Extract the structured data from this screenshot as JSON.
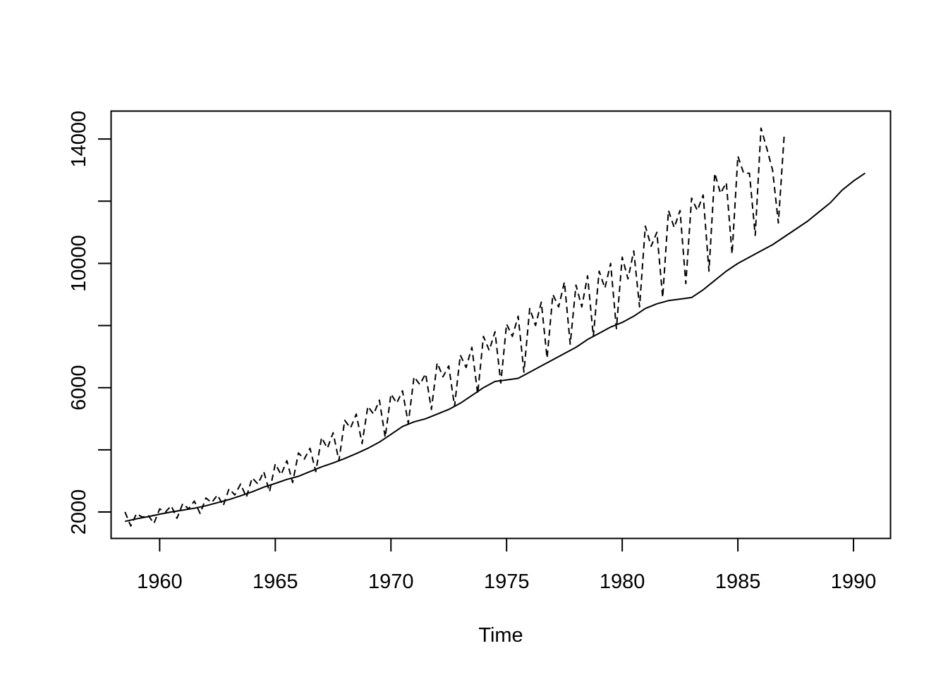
{
  "chart_data": {
    "type": "line",
    "title": "",
    "xlabel": "Time",
    "ylabel": "",
    "xlim": [
      1957.9,
      1991.6
    ],
    "ylim": [
      1150,
      14900
    ],
    "xticks": [
      1960,
      1965,
      1970,
      1975,
      1980,
      1985,
      1990
    ],
    "yticks": [
      2000,
      4000,
      6000,
      8000,
      10000,
      12000,
      14000
    ],
    "ytick_labels": [
      "2000",
      "",
      "6000",
      "",
      "10000",
      "",
      "14000"
    ],
    "grid": false,
    "legend": "none",
    "series": [
      {
        "line_style": "dashed",
        "x_start": 1958.5,
        "x_step": 0.25,
        "values": [
          2000,
          1550,
          1950,
          1830,
          1900,
          1630,
          2100,
          2000,
          2200,
          1800,
          2270,
          2100,
          2350,
          1950,
          2450,
          2300,
          2550,
          2200,
          2750,
          2550,
          2900,
          2480,
          3100,
          2900,
          3300,
          2650,
          3550,
          3200,
          3650,
          2950,
          3900,
          3700,
          4050,
          3300,
          4400,
          4050,
          4550,
          3650,
          4950,
          4700,
          5150,
          4200,
          5400,
          5150,
          5600,
          4400,
          5800,
          5500,
          5900,
          4850,
          6350,
          6100,
          6450,
          5300,
          6800,
          6350,
          6700,
          5400,
          7050,
          6650,
          7300,
          5800,
          7650,
          7200,
          7800,
          6150,
          8050,
          7650,
          8300,
          6500,
          8550,
          8000,
          8750,
          6950,
          9000,
          8600,
          9400,
          7400,
          9300,
          8600,
          9600,
          7650,
          9750,
          9200,
          10000,
          7900,
          10200,
          9500,
          10400,
          8600,
          11200,
          10550,
          11000,
          8900,
          11700,
          11150,
          11700,
          9350,
          12100,
          11700,
          12200,
          9750,
          12900,
          12250,
          12600,
          10300,
          13450,
          12900,
          12900,
          10900,
          14350,
          13700,
          13000,
          11300,
          14100
        ]
      },
      {
        "line_style": "solid",
        "x": [
          1958.5,
          1959.0,
          1959.5,
          1960.0,
          1960.5,
          1961.0,
          1961.5,
          1962.0,
          1962.5,
          1963.0,
          1963.5,
          1964.0,
          1964.5,
          1965.0,
          1965.5,
          1966.0,
          1966.5,
          1967.0,
          1967.5,
          1968.0,
          1968.5,
          1969.0,
          1969.5,
          1970.0,
          1970.5,
          1971.0,
          1971.5,
          1972.0,
          1972.5,
          1973.0,
          1973.5,
          1974.0,
          1974.5,
          1975.0,
          1975.5,
          1976.0,
          1976.5,
          1977.0,
          1977.5,
          1978.0,
          1978.5,
          1979.0,
          1979.5,
          1980.0,
          1980.5,
          1981.0,
          1981.5,
          1982.0,
          1982.5,
          1983.0,
          1983.5,
          1984.0,
          1984.5,
          1985.0,
          1985.5,
          1986.0,
          1986.5,
          1987.0,
          1987.5,
          1988.0,
          1988.5,
          1989.0,
          1989.5,
          1990.0,
          1990.5
        ],
        "values": [
          1700,
          1780,
          1850,
          1930,
          2000,
          2060,
          2120,
          2200,
          2300,
          2400,
          2520,
          2650,
          2800,
          2920,
          3050,
          3150,
          3300,
          3450,
          3580,
          3720,
          3880,
          4050,
          4250,
          4500,
          4750,
          4900,
          5000,
          5150,
          5300,
          5500,
          5750,
          6000,
          6200,
          6250,
          6300,
          6500,
          6700,
          6900,
          7100,
          7300,
          7550,
          7750,
          7950,
          8100,
          8300,
          8550,
          8700,
          8800,
          8850,
          8900,
          9150,
          9450,
          9750,
          10000,
          10200,
          10400,
          10600,
          10850,
          11100,
          11350,
          11650,
          11950,
          12350,
          12650,
          12900
        ]
      }
    ]
  }
}
